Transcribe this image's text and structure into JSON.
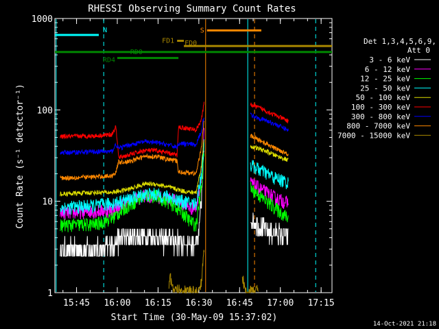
{
  "chart_data": {
    "type": "line",
    "title": "RHESSI Observing Summary Count Rates",
    "xlabel": "Start Time (30-May-09 15:37:02)",
    "ylabel": "Count Rate (s⁻¹ detector⁻¹)",
    "yscale": "log",
    "ylim": [
      1,
      1000
    ],
    "xlim_minutes_after_15_00": [
      37.03,
      139
    ],
    "x_ticks": [
      "15:45",
      "16:00",
      "16:15",
      "16:30",
      "16:45",
      "17:00",
      "17:15"
    ],
    "y_ticks": [
      "1",
      "10",
      "100",
      "1000"
    ],
    "legend_title": [
      "Det 1,3,4,5,6,9,",
      "Att 0"
    ],
    "legend_position": "right",
    "footer": "14-Oct-2021 21:18",
    "series": [
      {
        "name": "3 - 6 keV",
        "color": "#ffffff",
        "data": [
          [
            39,
            3.0
          ],
          [
            55,
            3.0
          ],
          [
            58,
            3.5
          ],
          [
            62,
            4.0
          ],
          [
            70,
            4.2
          ],
          [
            75,
            4.0
          ],
          [
            80,
            3.8
          ],
          [
            87,
            3.5
          ],
          [
            89,
            3.4
          ],
          [
            90,
            4
          ],
          [
            91.5,
            20
          ],
          [
            92,
            40
          ]
        ],
        "seg2": [
          [
            109,
            6.5
          ],
          [
            114,
            5.0
          ],
          [
            117,
            4.6
          ],
          [
            123,
            4.2
          ]
        ]
      },
      {
        "name": "6 - 12 keV",
        "color": "#ff00ff",
        "data": [
          [
            39,
            7.5
          ],
          [
            52,
            7.8
          ],
          [
            58,
            8.0
          ],
          [
            64,
            10
          ],
          [
            70,
            11.5
          ],
          [
            74,
            11.5
          ],
          [
            80,
            10.5
          ],
          [
            84,
            9.5
          ],
          [
            87,
            8.5
          ],
          [
            89,
            8.5
          ],
          [
            91,
            20
          ],
          [
            92,
            60
          ]
        ],
        "seg2": [
          [
            109,
            16
          ],
          [
            114,
            13
          ],
          [
            118,
            11
          ],
          [
            123,
            9.5
          ]
        ]
      },
      {
        "name": "12 - 25 keV",
        "color": "#00ff00",
        "data": [
          [
            39,
            5.5
          ],
          [
            52,
            5.6
          ],
          [
            58,
            6.5
          ],
          [
            64,
            9.0
          ],
          [
            70,
            11.5
          ],
          [
            74,
            11.5
          ],
          [
            80,
            9.5
          ],
          [
            84,
            7.5
          ],
          [
            87,
            6.0
          ],
          [
            89,
            5.5
          ],
          [
            91,
            15
          ],
          [
            92,
            40
          ]
        ],
        "seg2": [
          [
            109,
            14
          ],
          [
            114,
            10.5
          ],
          [
            118,
            8.5
          ],
          [
            123,
            6.5
          ]
        ]
      },
      {
        "name": "25 - 50 keV",
        "color": "#00ffff",
        "data": [
          [
            39,
            8.5
          ],
          [
            52,
            9.0
          ],
          [
            58,
            9.5
          ],
          [
            64,
            10.5
          ],
          [
            70,
            12
          ],
          [
            74,
            12
          ],
          [
            80,
            11
          ],
          [
            84,
            10
          ],
          [
            87,
            9.5
          ],
          [
            89,
            9.5
          ],
          [
            91,
            20
          ],
          [
            92,
            50
          ]
        ],
        "seg2": [
          [
            109,
            25
          ],
          [
            114,
            21
          ],
          [
            118,
            18
          ],
          [
            123,
            16
          ]
        ]
      },
      {
        "name": "50 - 100 keV",
        "color": "#dddd00",
        "data": [
          [
            39,
            12
          ],
          [
            52,
            12.5
          ],
          [
            58,
            12.5
          ],
          [
            64,
            13.5
          ],
          [
            70,
            15.5
          ],
          [
            74,
            15.5
          ],
          [
            80,
            14
          ],
          [
            84,
            13
          ],
          [
            87,
            12.5
          ],
          [
            89,
            12.5
          ],
          [
            91,
            25
          ],
          [
            92,
            50
          ]
        ],
        "seg2": [
          [
            109,
            40
          ],
          [
            114,
            36
          ],
          [
            118,
            32
          ],
          [
            123,
            28
          ]
        ]
      },
      {
        "name": "100 - 300 keV",
        "color": "#ff0000",
        "data": [
          [
            39,
            51
          ],
          [
            52,
            52
          ],
          [
            58,
            54
          ],
          [
            59.5,
            65
          ],
          [
            60.5,
            30
          ],
          [
            64,
            32
          ],
          [
            70,
            36
          ],
          [
            74,
            36
          ],
          [
            78,
            34
          ],
          [
            82,
            32
          ],
          [
            82.5,
            65
          ],
          [
            87,
            62
          ],
          [
            89,
            60
          ],
          [
            91,
            80
          ],
          [
            92,
            120
          ]
        ],
        "seg2": [
          [
            109,
            115
          ],
          [
            114,
            100
          ],
          [
            118,
            88
          ],
          [
            123,
            75
          ]
        ]
      },
      {
        "name": "300 - 800 keV",
        "color": "#0000ff",
        "data": [
          [
            39,
            34
          ],
          [
            52,
            35
          ],
          [
            58,
            35
          ],
          [
            59.5,
            42
          ],
          [
            60.5,
            38
          ],
          [
            64,
            41
          ],
          [
            70,
            45
          ],
          [
            74,
            44
          ],
          [
            78,
            42
          ],
          [
            82,
            39
          ],
          [
            82.5,
            43
          ],
          [
            87,
            42
          ],
          [
            89,
            41
          ],
          [
            91,
            60
          ],
          [
            92,
            90
          ]
        ],
        "seg2": [
          [
            109,
            88
          ],
          [
            114,
            78
          ],
          [
            118,
            70
          ],
          [
            123,
            60
          ]
        ]
      },
      {
        "name": "800 - 7000 keV",
        "color": "#ff8800",
        "data": [
          [
            39,
            18
          ],
          [
            52,
            18.5
          ],
          [
            58,
            19
          ],
          [
            59.5,
            21
          ],
          [
            60.5,
            27
          ],
          [
            64,
            27
          ],
          [
            70,
            31
          ],
          [
            74,
            31
          ],
          [
            78,
            29
          ],
          [
            82,
            27.5
          ],
          [
            82.5,
            21
          ],
          [
            87,
            20.5
          ],
          [
            89,
            20
          ],
          [
            91,
            40
          ],
          [
            92,
            80
          ]
        ],
        "seg2": [
          [
            109,
            52
          ],
          [
            114,
            44
          ],
          [
            118,
            38
          ],
          [
            123,
            33
          ]
        ]
      },
      {
        "name": "7000 - 15000 keV",
        "color": "#aa8800",
        "data": [
          [
            79,
            1.1
          ],
          [
            79.5,
            1.7
          ],
          [
            80,
            1.1
          ],
          [
            90,
            1.0
          ],
          [
            91,
            1.4
          ],
          [
            92,
            3
          ]
        ],
        "seg2": [
          [
            106,
            1.6
          ],
          [
            107,
            1.0
          ],
          [
            112,
            1.1
          ]
        ]
      }
    ],
    "flags": [
      {
        "label": "N",
        "color": "#00ffff",
        "x": [
          37.03,
          53.2
        ],
        "ylevel": 660
      },
      {
        "label": "S",
        "color": "#ff8800",
        "x": [
          93,
          113
        ],
        "ylevel": 740
      },
      {
        "label": "FD1",
        "color": "#aa8800",
        "x": [
          82,
          84.5
        ],
        "ylevel": 570
      },
      {
        "label": "FD0",
        "color": "#aa8800",
        "x": [
          84.5,
          139
        ],
        "ylevel": 500
      },
      {
        "label": "RD0",
        "color": "#008800",
        "x": [
          37.03,
          139
        ],
        "ylevel": 430
      },
      {
        "label": "RD4",
        "color": "#008800",
        "x": [
          60,
          82.5
        ],
        "ylevel": 370
      }
    ],
    "vlines": [
      {
        "x": 37.5,
        "color": "#00ffff",
        "style": "solid"
      },
      {
        "x": 55,
        "color": "#00ffff",
        "style": "dashed"
      },
      {
        "x": 92.5,
        "color": "#ff8800",
        "style": "solid"
      },
      {
        "x": 108,
        "color": "#00ffff",
        "style": "solid"
      },
      {
        "x": 110.5,
        "color": "#ff8800",
        "style": "dashed"
      },
      {
        "x": 133,
        "color": "#00ffff",
        "style": "dashed"
      }
    ]
  }
}
